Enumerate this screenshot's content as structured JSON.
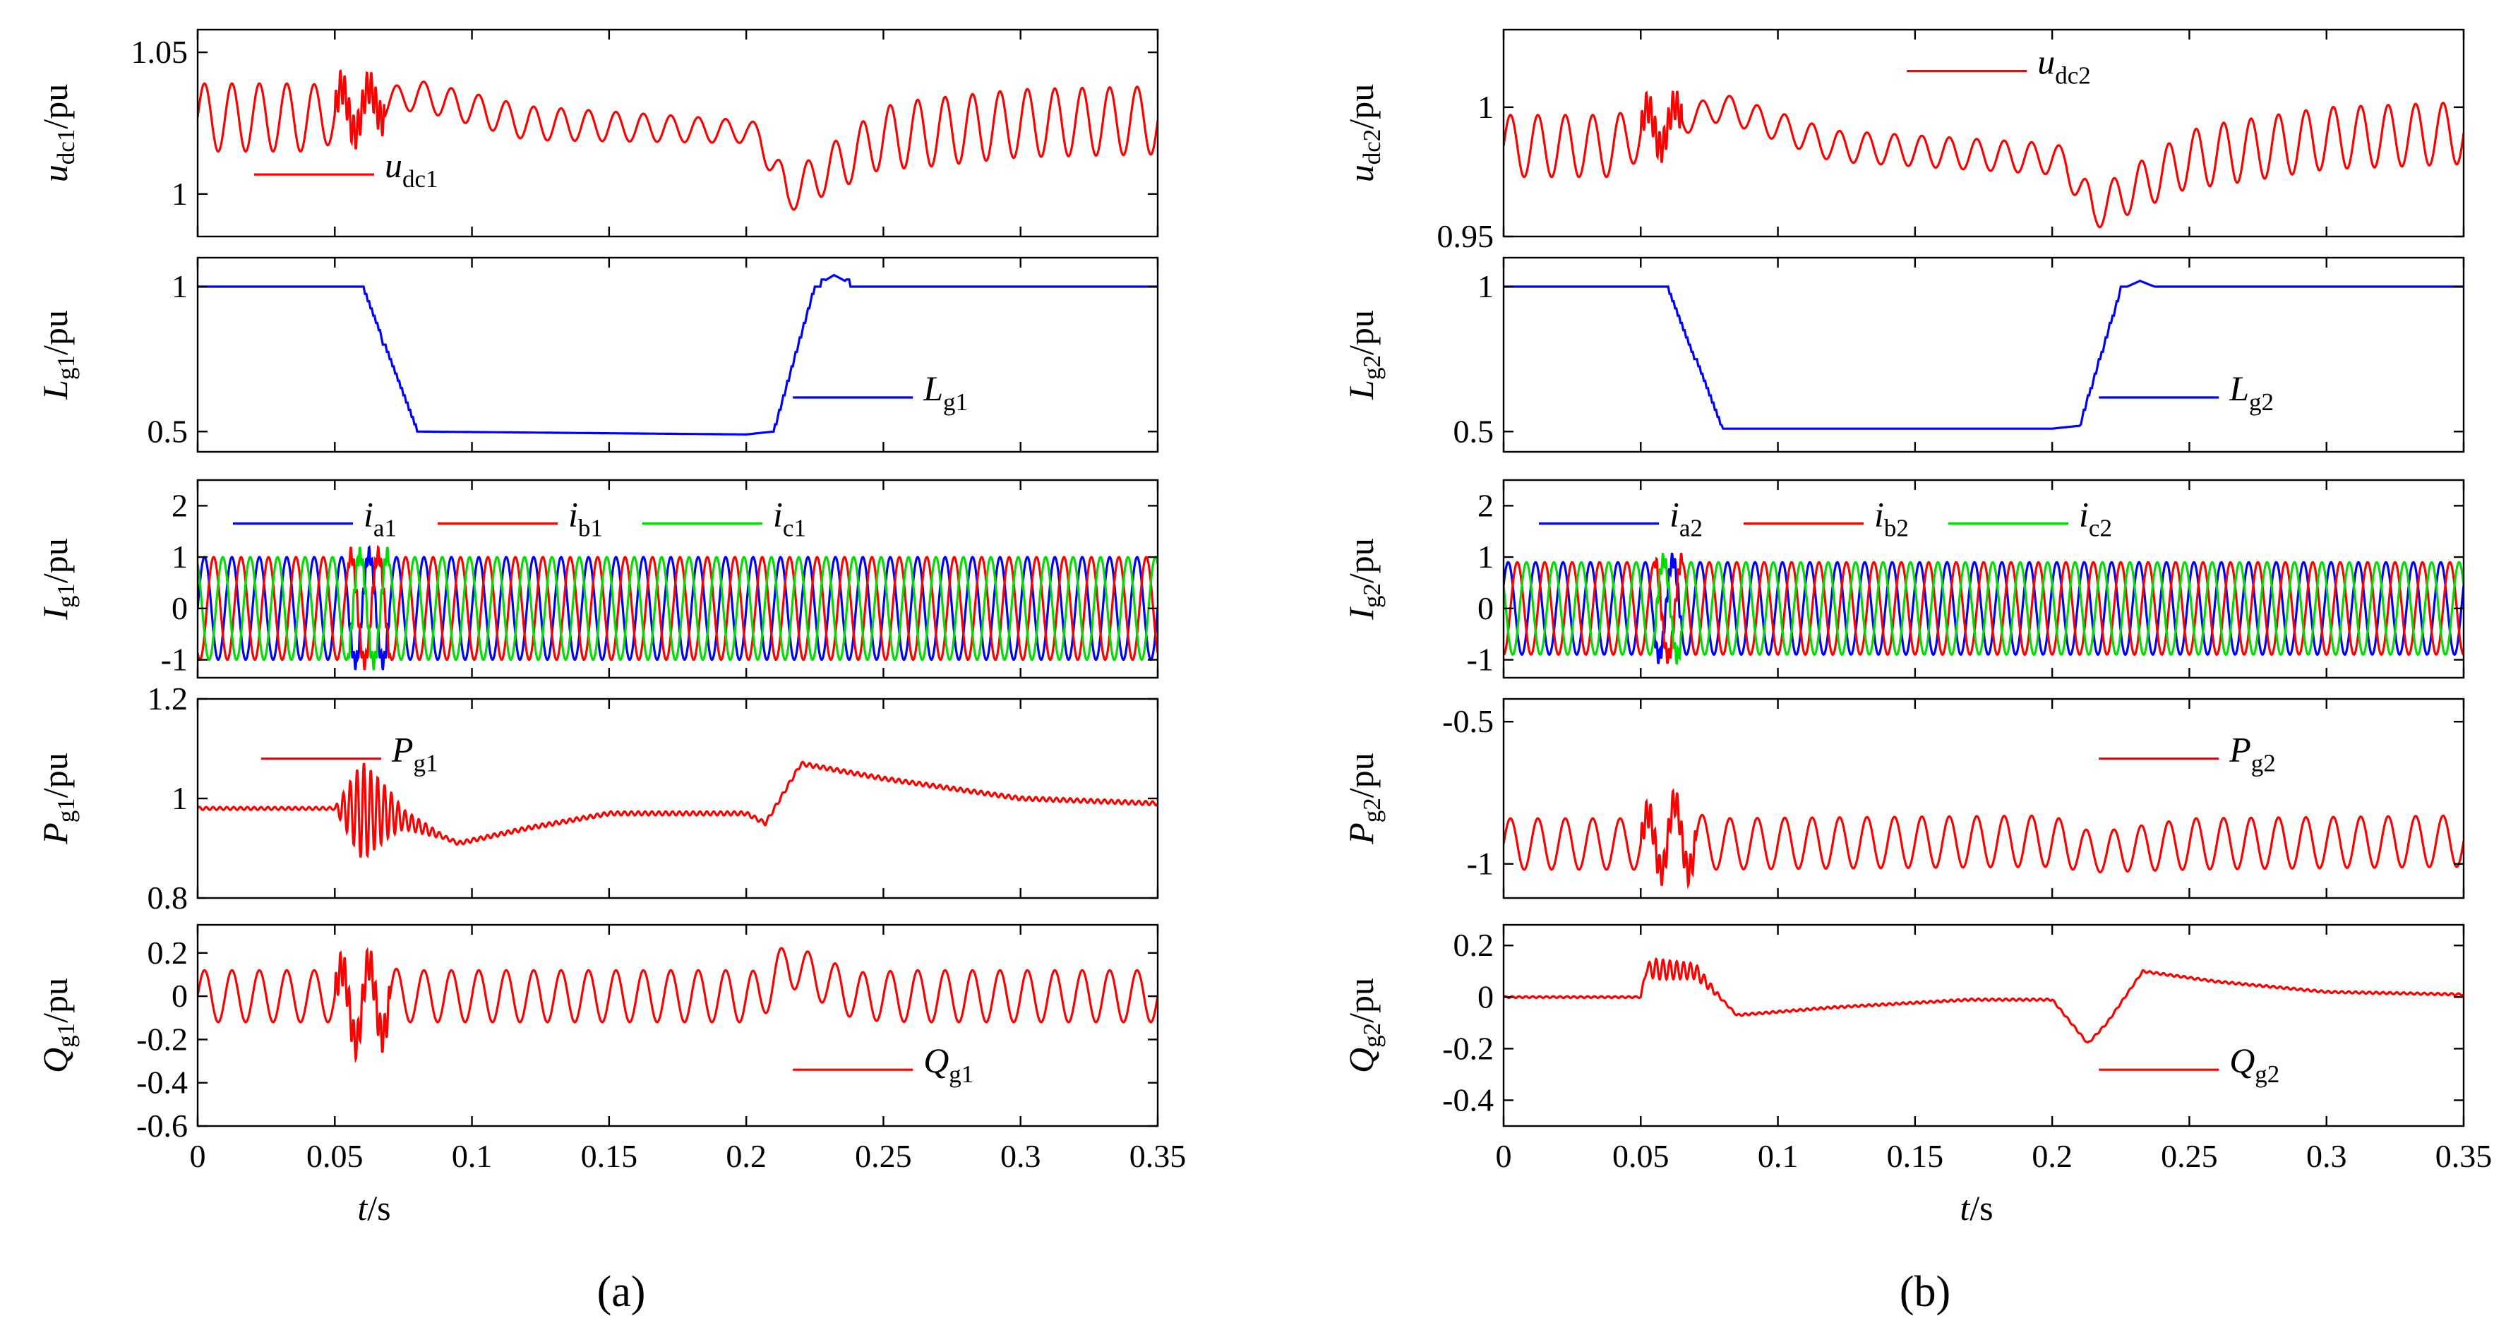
{
  "figure": {
    "panel_labels": [
      "(a)",
      "(b)"
    ],
    "x_label": {
      "italic": "t",
      "rest": "/s"
    }
  },
  "colors": {
    "red": "#ff0000",
    "blue": "#0000ff",
    "green": "#00dd00",
    "axis": "#000000"
  },
  "chart_data": [
    {
      "type": "line",
      "panel": "a",
      "row": 0,
      "ylabel": {
        "main": "u",
        "sub": "dc1",
        "unit": "/pu"
      },
      "yticks": [
        1,
        1.05
      ],
      "ytick_labels": [
        "1",
        "1.05"
      ],
      "ylim": [
        0.985,
        1.058
      ],
      "xlim": [
        0,
        0.35
      ],
      "xticks": [
        0,
        0.05,
        0.1,
        0.15,
        0.2,
        0.25,
        0.3,
        0.35
      ],
      "show_xticks": false,
      "legend": [
        {
          "color": "red",
          "main": "u",
          "sub": "dc1"
        }
      ],
      "legend_position": "lower-left",
      "series": [
        {
          "name": "u_dc1",
          "color": "red",
          "kind": "signal",
          "amp": [
            0.012,
            0.012,
            0.01,
            0.005,
            0.006,
            0.004,
            0.006,
            0.012,
            0.012
          ],
          "amp_t": [
            0,
            0.04,
            0.05,
            0.07,
            0.12,
            0.2,
            0.21,
            0.26,
            0.35
          ],
          "base": [
            1.027,
            1.027,
            1.028,
            1.035,
            1.025,
            1.022,
            1.02,
            1.0,
            1.02,
            1.025,
            1.026
          ],
          "base_t": [
            0,
            0.04,
            0.05,
            0.08,
            0.12,
            0.2,
            0.205,
            0.215,
            0.25,
            0.3,
            0.35
          ],
          "freq": 100,
          "burst": [
            0.05,
            0.068,
            0.006
          ]
        }
      ]
    },
    {
      "type": "line",
      "panel": "a",
      "row": 1,
      "ylabel": {
        "main": "L",
        "sub": "g1",
        "unit": "/pu"
      },
      "yticks": [
        0.5,
        1
      ],
      "ytick_labels": [
        "0.5",
        "1"
      ],
      "ylim": [
        0.43,
        1.1
      ],
      "xlim": [
        0,
        0.35
      ],
      "show_xticks": false,
      "legend": [
        {
          "color": "blue",
          "main": "L",
          "sub": "g1"
        }
      ],
      "legend_position": "lower-right",
      "series": [
        {
          "name": "L_g1",
          "color": "blue",
          "kind": "stair",
          "x": [
            0,
            0.06,
            0.08,
            0.2,
            0.21,
            0.225,
            0.232,
            0.24,
            0.25,
            0.35
          ],
          "y": [
            1.0,
            1.0,
            0.5,
            0.49,
            0.5,
            1.0,
            1.04,
            1.0,
            1.0,
            1.0
          ]
        }
      ]
    },
    {
      "type": "line",
      "panel": "a",
      "row": 2,
      "ylabel": {
        "main": "I",
        "sub": "g1",
        "unit": "/pu"
      },
      "yticks": [
        -1,
        0,
        1,
        2
      ],
      "ytick_labels": [
        "-1",
        "0",
        "1",
        "2"
      ],
      "ylim": [
        -1.35,
        2.5
      ],
      "xlim": [
        0,
        0.35
      ],
      "show_xticks": false,
      "legend": [
        {
          "color": "blue",
          "main": "i",
          "sub": "a1"
        },
        {
          "color": "red",
          "main": "i",
          "sub": "b1"
        },
        {
          "color": "green",
          "main": "i",
          "sub": "c1"
        }
      ],
      "legend_position": "top",
      "series": [
        {
          "name": "i_a1",
          "color": "blue",
          "kind": "sine",
          "amp": 1,
          "freq": 100,
          "phase": 0,
          "distort": [
            0.055,
            0.07
          ]
        },
        {
          "name": "i_b1",
          "color": "red",
          "kind": "sine",
          "amp": 1,
          "freq": 100,
          "phase": -120,
          "distort": [
            0.055,
            0.07
          ]
        },
        {
          "name": "i_c1",
          "color": "green",
          "kind": "sine",
          "amp": 1,
          "freq": 100,
          "phase": 120,
          "distort": [
            0.055,
            0.07
          ]
        }
      ]
    },
    {
      "type": "line",
      "panel": "a",
      "row": 3,
      "ylabel": {
        "main": "P",
        "sub": "g1",
        "unit": "/pu"
      },
      "yticks": [
        0.8,
        1,
        1.2
      ],
      "ytick_labels": [
        "0.8",
        "1",
        "1.2"
      ],
      "ylim": [
        0.8,
        1.2
      ],
      "xlim": [
        0,
        0.35
      ],
      "show_xticks": false,
      "legend": [
        {
          "color": "red",
          "main": "P",
          "sub": "g1"
        }
      ],
      "legend_position": "top-left",
      "series": [
        {
          "name": "P_g1",
          "color": "red",
          "kind": "signal",
          "amp": [
            0.003,
            0.003,
            0.1,
            0.02,
            0.004,
            0.004
          ],
          "amp_t": [
            0,
            0.05,
            0.06,
            0.075,
            0.09,
            0.35
          ],
          "base": [
            0.98,
            0.98,
            0.97,
            0.91,
            0.94,
            0.97,
            0.97,
            0.95,
            1.07,
            1.04,
            1.0,
            0.99
          ],
          "base_t": [
            0,
            0.05,
            0.07,
            0.095,
            0.12,
            0.15,
            0.2,
            0.207,
            0.22,
            0.25,
            0.3,
            0.35
          ],
          "freq": 400,
          "burst": [
            0.05,
            0.07,
            0.0
          ]
        }
      ]
    },
    {
      "type": "line",
      "panel": "a",
      "row": 4,
      "ylabel": {
        "main": "Q",
        "sub": "g1",
        "unit": "/pu"
      },
      "yticks": [
        -0.6,
        -0.4,
        -0.2,
        0,
        0.2
      ],
      "ytick_labels": [
        "-0.6",
        "-0.4",
        "-0.2",
        "0",
        "0.2"
      ],
      "ylim": [
        -0.6,
        0.33
      ],
      "xlim": [
        0,
        0.35
      ],
      "xticks": [
        0,
        0.05,
        0.1,
        0.15,
        0.2,
        0.25,
        0.3,
        0.35
      ],
      "xtick_labels": [
        "0",
        "0.05",
        "0.1",
        "0.15",
        "0.2",
        "0.25",
        "0.3",
        "0.35"
      ],
      "show_xticks": true,
      "legend": [
        {
          "color": "red",
          "main": "Q",
          "sub": "g1"
        }
      ],
      "legend_position": "lower-right",
      "series": [
        {
          "name": "Q_g1",
          "color": "red",
          "kind": "signal",
          "amp": [
            0.12,
            0.12,
            0.2,
            0.12,
            0.12,
            0.1,
            0.12,
            0.12
          ],
          "amp_t": [
            0,
            0.05,
            0.06,
            0.075,
            0.2,
            0.22,
            0.26,
            0.35
          ],
          "base": [
            0,
            0,
            -0.04,
            0,
            0,
            0.15,
            0,
            0
          ],
          "base_t": [
            0,
            0.05,
            0.06,
            0.075,
            0.205,
            0.215,
            0.24,
            0.35
          ],
          "freq": 100,
          "burst": [
            0.05,
            0.07,
            0.08
          ]
        }
      ]
    },
    {
      "type": "line",
      "panel": "b",
      "row": 0,
      "ylabel": {
        "main": "u",
        "sub": "dc2",
        "unit": "/pu"
      },
      "yticks": [
        0.95,
        1
      ],
      "ytick_labels": [
        "0.95",
        "1"
      ],
      "ylim": [
        0.95,
        1.03
      ],
      "xlim": [
        0,
        0.35
      ],
      "show_xticks": false,
      "legend": [
        {
          "color": "red",
          "main": "u",
          "sub": "dc2"
        }
      ],
      "legend_position": "top",
      "series": [
        {
          "name": "u_dc2",
          "color": "red",
          "kind": "signal",
          "amp": [
            0.012,
            0.012,
            0.01,
            0.005,
            0.006,
            0.006,
            0.012,
            0.012
          ],
          "amp_t": [
            0,
            0.04,
            0.05,
            0.07,
            0.12,
            0.2,
            0.26,
            0.35
          ],
          "base": [
            0.985,
            0.985,
            0.99,
            1.0,
            0.985,
            0.98,
            0.978,
            0.96,
            0.98,
            0.988,
            0.99
          ],
          "base_t": [
            0,
            0.04,
            0.05,
            0.08,
            0.12,
            0.2,
            0.205,
            0.215,
            0.25,
            0.3,
            0.35
          ],
          "freq": 100,
          "burst": [
            0.05,
            0.065,
            0.006
          ]
        }
      ]
    },
    {
      "type": "line",
      "panel": "b",
      "row": 1,
      "ylabel": {
        "main": "L",
        "sub": "g2",
        "unit": "/pu"
      },
      "yticks": [
        0.5,
        1
      ],
      "ytick_labels": [
        "0.5",
        "1"
      ],
      "ylim": [
        0.43,
        1.1
      ],
      "xlim": [
        0,
        0.35
      ],
      "show_xticks": false,
      "legend": [
        {
          "color": "blue",
          "main": "L",
          "sub": "g2"
        }
      ],
      "legend_position": "lower-right",
      "series": [
        {
          "name": "L_g2",
          "color": "blue",
          "kind": "stair",
          "x": [
            0,
            0.06,
            0.08,
            0.2,
            0.21,
            0.225,
            0.232,
            0.24,
            0.25,
            0.35
          ],
          "y": [
            0.99,
            0.99,
            0.51,
            0.51,
            0.52,
            0.99,
            1.02,
            0.99,
            0.99,
            0.99
          ]
        }
      ]
    },
    {
      "type": "line",
      "panel": "b",
      "row": 2,
      "ylabel": {
        "main": "I",
        "sub": "g2",
        "unit": "/pu"
      },
      "yticks": [
        -1,
        0,
        1,
        2
      ],
      "ytick_labels": [
        "-1",
        "0",
        "1",
        "2"
      ],
      "ylim": [
        -1.35,
        2.5
      ],
      "xlim": [
        0,
        0.35
      ],
      "show_xticks": false,
      "legend": [
        {
          "color": "blue",
          "main": "i",
          "sub": "a2"
        },
        {
          "color": "red",
          "main": "i",
          "sub": "b2"
        },
        {
          "color": "green",
          "main": "i",
          "sub": "c2"
        }
      ],
      "legend_position": "top",
      "series": [
        {
          "name": "i_a2",
          "color": "blue",
          "kind": "sine",
          "amp": 0.9,
          "freq": 100,
          "phase": 30,
          "distort": [
            0.055,
            0.065
          ]
        },
        {
          "name": "i_b2",
          "color": "red",
          "kind": "sine",
          "amp": 0.9,
          "freq": 100,
          "phase": -90,
          "distort": [
            0.055,
            0.065
          ]
        },
        {
          "name": "i_c2",
          "color": "green",
          "kind": "sine",
          "amp": 0.9,
          "freq": 100,
          "phase": 150,
          "distort": [
            0.055,
            0.065
          ]
        }
      ]
    },
    {
      "type": "line",
      "panel": "b",
      "row": 3,
      "ylabel": {
        "main": "P",
        "sub": "g2",
        "unit": "/pu"
      },
      "yticks": [
        -1,
        -0.5
      ],
      "ytick_labels": [
        "-1",
        "-0.5"
      ],
      "ylim": [
        -1.12,
        -0.42
      ],
      "xlim": [
        0,
        0.35
      ],
      "show_xticks": false,
      "legend": [
        {
          "color": "red",
          "main": "P",
          "sub": "g2"
        }
      ],
      "legend_position": "top-right",
      "series": [
        {
          "name": "P_g2",
          "color": "red",
          "kind": "signal",
          "amp": [
            0.09,
            0.09,
            0.13,
            0.09,
            0.09,
            0.07,
            0.09,
            0.09
          ],
          "amp_t": [
            0,
            0.05,
            0.06,
            0.075,
            0.2,
            0.215,
            0.25,
            0.35
          ],
          "base": [
            -0.93,
            -0.93,
            -0.9,
            -0.93,
            -0.92,
            -0.96,
            -0.93,
            -0.92
          ],
          "base_t": [
            0,
            0.05,
            0.06,
            0.075,
            0.2,
            0.215,
            0.25,
            0.35
          ],
          "freq": 100,
          "burst": [
            0.05,
            0.07,
            0.05
          ]
        }
      ]
    },
    {
      "type": "line",
      "panel": "b",
      "row": 4,
      "ylabel": {
        "main": "Q",
        "sub": "g2",
        "unit": "/pu"
      },
      "yticks": [
        -0.4,
        -0.2,
        0,
        0.2
      ],
      "ytick_labels": [
        "-0.4",
        "-0.2",
        "0",
        "0.2"
      ],
      "ylim": [
        -0.5,
        0.28
      ],
      "xlim": [
        0,
        0.35
      ],
      "xticks": [
        0,
        0.05,
        0.1,
        0.15,
        0.2,
        0.25,
        0.3,
        0.35
      ],
      "xtick_labels": [
        "0",
        "0.05",
        "0.1",
        "0.15",
        "0.2",
        "0.25",
        "0.3",
        "0.35"
      ],
      "show_xticks": true,
      "legend": [
        {
          "color": "red",
          "main": "Q",
          "sub": "g2"
        }
      ],
      "legend_position": "lower-right",
      "series": [
        {
          "name": "Q_g2",
          "color": "red",
          "kind": "signal",
          "amp": [
            0.003,
            0.003,
            0.04,
            0.03,
            0.004,
            0.004
          ],
          "amp_t": [
            0,
            0.05,
            0.055,
            0.07,
            0.08,
            0.35
          ],
          "base": [
            0,
            0,
            0.11,
            0.1,
            -0.07,
            -0.04,
            -0.01,
            -0.01,
            -0.18,
            -0.1,
            0.1,
            0.06,
            0.02,
            0.01
          ],
          "base_t": [
            0,
            0.05,
            0.052,
            0.07,
            0.085,
            0.12,
            0.17,
            0.2,
            0.213,
            0.22,
            0.233,
            0.26,
            0.3,
            0.35
          ],
          "freq": 400,
          "burst": [
            0.05,
            0.07,
            0.0
          ]
        }
      ]
    }
  ]
}
